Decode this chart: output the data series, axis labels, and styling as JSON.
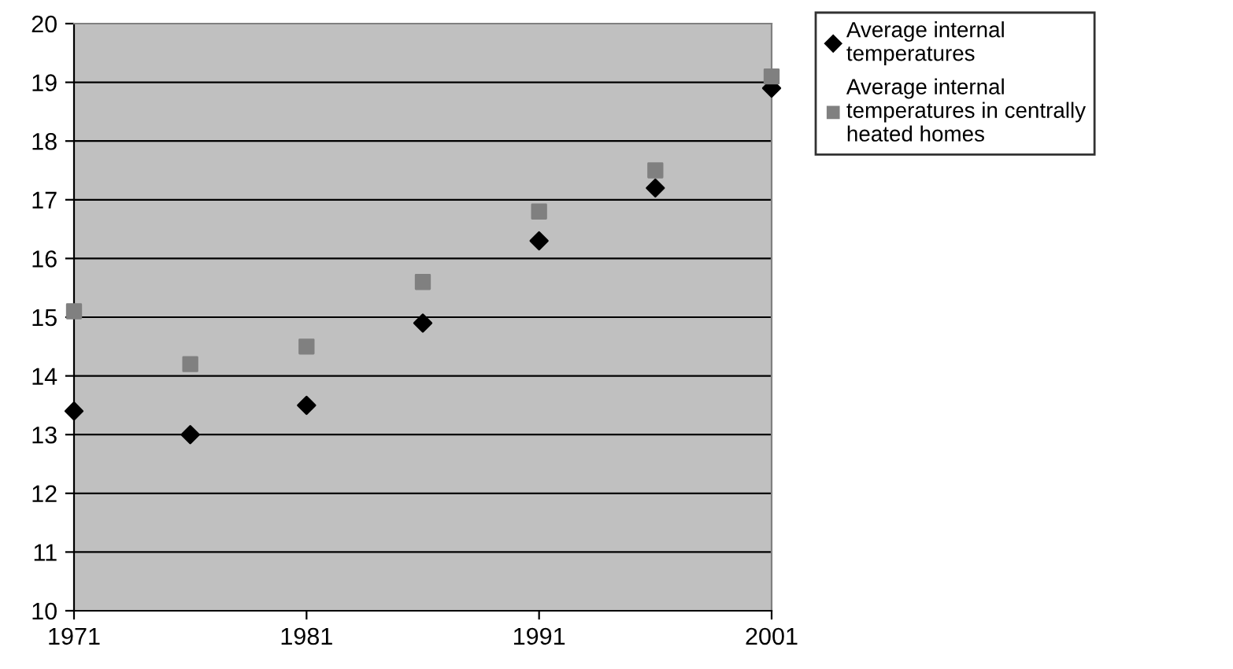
{
  "chart_data": {
    "type": "scatter",
    "x": [
      1971,
      1976,
      1981,
      1986,
      1991,
      1996,
      2001
    ],
    "series": [
      {
        "name": "Average internal temperatures",
        "color": "#000000",
        "marker": "diamond",
        "values": [
          13.4,
          13.0,
          13.5,
          14.9,
          16.3,
          17.2,
          18.9
        ]
      },
      {
        "name": "Average internal temperatures in centrally heated homes",
        "color": "#808080",
        "marker": "square",
        "values": [
          15.1,
          14.2,
          14.5,
          15.6,
          16.8,
          17.5,
          19.1
        ]
      }
    ],
    "xlim": [
      1971,
      2001
    ],
    "xticks": [
      1971,
      1981,
      1991,
      2001
    ],
    "ylim": [
      10,
      20
    ],
    "yticks": [
      10,
      11,
      12,
      13,
      14,
      15,
      16,
      17,
      18,
      19,
      20
    ],
    "grid": "y",
    "legend": "top right"
  }
}
